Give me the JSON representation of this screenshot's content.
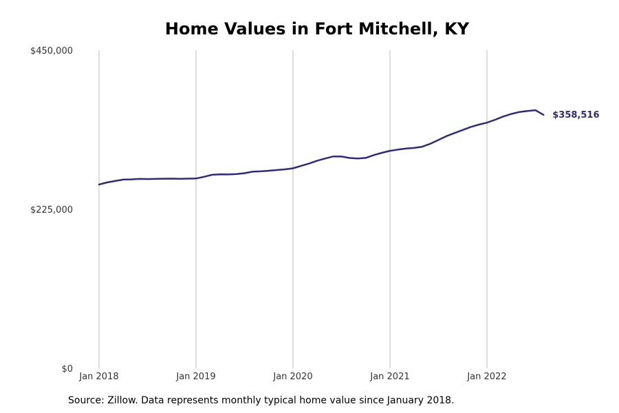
{
  "chart_data": {
    "type": "line",
    "title": "Home Values in Fort Mitchell, KY",
    "source": "Source: Zillow. Data represents monthly typical home value since January 2018.",
    "ylim": [
      0,
      450000
    ],
    "y_ticks": [
      {
        "value": 0,
        "label": "$0"
      },
      {
        "value": 225000,
        "label": "$225,000"
      },
      {
        "value": 450000,
        "label": "$450,000"
      }
    ],
    "x_ticks": [
      {
        "value": 0,
        "label": "Jan 2018"
      },
      {
        "value": 12,
        "label": "Jan 2019"
      },
      {
        "value": 24,
        "label": "Jan 2020"
      },
      {
        "value": 36,
        "label": "Jan 2021"
      },
      {
        "value": 48,
        "label": "Jan 2022"
      }
    ],
    "grid": {
      "vertical": true,
      "horizontal": false
    },
    "line_color": "#2e2a7f",
    "grid_color": "#bbbbbb",
    "end_label": "$358,516",
    "series": [
      {
        "values": [
          260000,
          263000,
          265000,
          267000,
          267300,
          268000,
          267800,
          268000,
          268200,
          268300,
          268100,
          268300,
          268500,
          271000,
          273800,
          274500,
          274300,
          274800,
          276000,
          278200,
          278700,
          279500,
          280500,
          281500,
          283000,
          286500,
          289700,
          293800,
          296900,
          299800,
          299600,
          297600,
          296900,
          297700,
          301700,
          304900,
          307700,
          309400,
          310900,
          311800,
          313500,
          317700,
          323100,
          328500,
          332900,
          337200,
          341500,
          344800,
          347500,
          351600,
          356200,
          359800,
          362600,
          364100,
          365200,
          358516
        ]
      }
    ]
  }
}
